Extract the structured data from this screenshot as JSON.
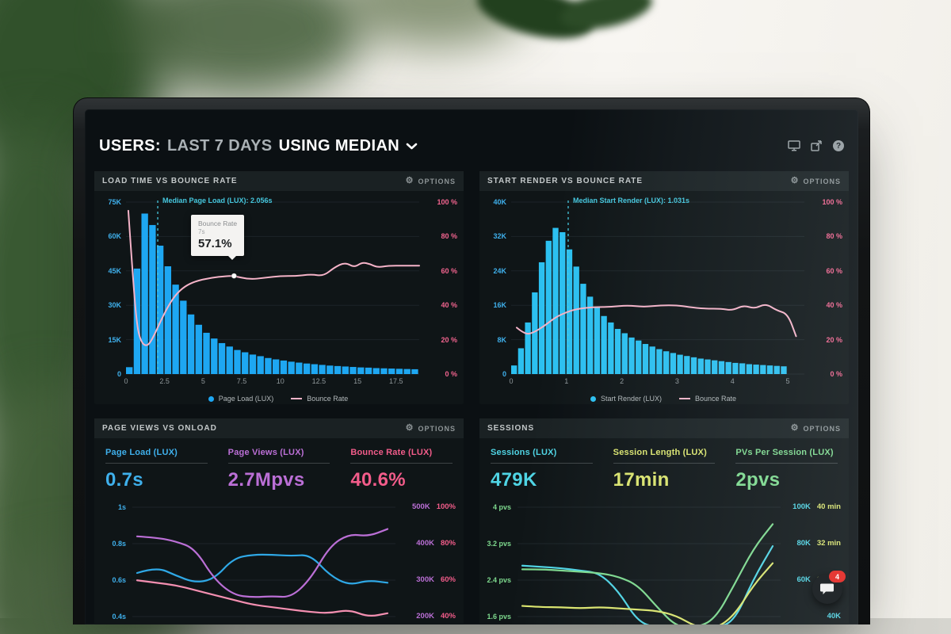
{
  "header": {
    "title_users": "USERS:",
    "title_range": "LAST 7 DAYS",
    "title_metric": "USING MEDIAN"
  },
  "icons": {
    "gear_glyph": "⚙",
    "help_glyph": "?"
  },
  "panels": {
    "load_time": {
      "title": "LOAD TIME VS BOUNCE RATE",
      "options": "OPTIONS",
      "tooltip": {
        "label": "Bounce Rate",
        "time": "7s",
        "value": "57.1%"
      }
    },
    "start_render": {
      "title": "START RENDER VS BOUNCE RATE",
      "options": "OPTIONS"
    },
    "page_views": {
      "title": "PAGE VIEWS VS ONLOAD",
      "options": "OPTIONS",
      "stats": [
        {
          "label": "Page Load (LUX)",
          "value": "0.7s",
          "color": "#3fb0ec"
        },
        {
          "label": "Page Views (LUX)",
          "value": "2.7Mpvs",
          "color": "#bb6fd6"
        },
        {
          "label": "Bounce Rate (LUX)",
          "value": "40.6%",
          "color": "#f25c8a"
        }
      ]
    },
    "sessions": {
      "title": "SESSIONS",
      "options": "OPTIONS",
      "stats": [
        {
          "label": "Sessions (LUX)",
          "value": "479K",
          "color": "#4fd4e4"
        },
        {
          "label": "Session Length (LUX)",
          "value": "17min",
          "color": "#dbe56e"
        },
        {
          "label": "PVs Per Session (LUX)",
          "value": "2pvs",
          "color": "#7ed98e"
        }
      ]
    }
  },
  "chat_badge": "4",
  "chart_data": [
    {
      "id": "load_time",
      "type": "histogram+line",
      "title": "LOAD TIME VS BOUNCE RATE",
      "x_unit": "seconds",
      "xlim": [
        0,
        19
      ],
      "x_ticks": [
        {
          "v": 0,
          "label": "0"
        },
        {
          "v": 2.5,
          "label": "2.5"
        },
        {
          "v": 5,
          "label": "5"
        },
        {
          "v": 7.5,
          "label": "7.5"
        },
        {
          "v": 10,
          "label": "10"
        },
        {
          "v": 12.5,
          "label": "12.5"
        },
        {
          "v": 15,
          "label": "15"
        },
        {
          "v": 17.5,
          "label": "17.5"
        }
      ],
      "left_axis": {
        "ticks": [
          "75K",
          "60K",
          "45K",
          "30K",
          "15K",
          "0"
        ],
        "max_k": 75,
        "color": "#3fb0ec"
      },
      "right_axis": {
        "ticks": [
          "100 %",
          "80 %",
          "60 %",
          "40 %",
          "20 %",
          "0 %"
        ],
        "max": 100,
        "color": "#f2648f"
      },
      "bars": {
        "name": "Page Load (LUX)",
        "color": "#1ea7f2",
        "bin_start": 0,
        "bin_width": 0.5,
        "values_k": [
          3,
          46,
          70,
          65,
          56,
          47,
          39,
          32,
          26,
          21.5,
          18,
          15.5,
          13.5,
          12,
          10.5,
          9.5,
          8.5,
          7.8,
          7,
          6.4,
          5.9,
          5.4,
          5,
          4.6,
          4.3,
          4,
          3.7,
          3.5,
          3.3,
          3.1,
          2.9,
          2.8,
          2.6,
          2.5,
          2.4,
          2.3,
          2.2,
          2.1
        ]
      },
      "line": {
        "name": "Bounce Rate",
        "color": "#f5b3c8",
        "points": [
          [
            0.15,
            95
          ],
          [
            0.4,
            62
          ],
          [
            0.7,
            28
          ],
          [
            1,
            18
          ],
          [
            1.4,
            16
          ],
          [
            1.8,
            22
          ],
          [
            2.2,
            30
          ],
          [
            2.7,
            39
          ],
          [
            3.2,
            46
          ],
          [
            3.8,
            51
          ],
          [
            4.5,
            54
          ],
          [
            5.5,
            56
          ],
          [
            6.5,
            57
          ],
          [
            7,
            57.1
          ],
          [
            8,
            55
          ],
          [
            9,
            56
          ],
          [
            10,
            57
          ],
          [
            11,
            57
          ],
          [
            12,
            58
          ],
          [
            12.8,
            57
          ],
          [
            13.5,
            62
          ],
          [
            14.2,
            65
          ],
          [
            14.8,
            62
          ],
          [
            15.3,
            65
          ],
          [
            15.8,
            64
          ],
          [
            16.3,
            62
          ],
          [
            17,
            63
          ],
          [
            18,
            63
          ],
          [
            19,
            63
          ]
        ]
      },
      "median": {
        "value": 2.056,
        "label": "Median Page Load (LUX): 2.056s",
        "color": "#45c6dd"
      },
      "marker": {
        "x": 7,
        "pct": 57.1
      }
    },
    {
      "id": "start_render",
      "type": "histogram+line",
      "title": "START RENDER VS BOUNCE RATE",
      "x_unit": "seconds",
      "xlim": [
        0,
        5.3
      ],
      "x_ticks": [
        {
          "v": 0,
          "label": "0"
        },
        {
          "v": 1,
          "label": "1"
        },
        {
          "v": 2,
          "label": "2"
        },
        {
          "v": 3,
          "label": "3"
        },
        {
          "v": 4,
          "label": "4"
        },
        {
          "v": 5,
          "label": "5"
        }
      ],
      "left_axis": {
        "ticks": [
          "40K",
          "32K",
          "24K",
          "16K",
          "8K",
          "0"
        ],
        "max_k": 40,
        "color": "#3fb0ec"
      },
      "right_axis": {
        "ticks": [
          "100 %",
          "80 %",
          "60 %",
          "40 %",
          "20 %",
          "0 %"
        ],
        "max": 100,
        "color": "#f2648f"
      },
      "bars": {
        "name": "Start Render (LUX)",
        "color": "#2cc0f0",
        "bin_start": 0,
        "bin_width": 0.125,
        "values_k": [
          2,
          6,
          12,
          19,
          26,
          31,
          34,
          33,
          29,
          25,
          21,
          18,
          15.5,
          13.5,
          12,
          10.5,
          9.5,
          8.5,
          7.8,
          7,
          6.4,
          5.8,
          5.3,
          4.9,
          4.5,
          4.2,
          3.9,
          3.6,
          3.4,
          3.2,
          3,
          2.8,
          2.6,
          2.5,
          2.3,
          2.2,
          2.1,
          2,
          1.9,
          1.8
        ]
      },
      "line": {
        "name": "Bounce Rate",
        "color": "#f5b3c8",
        "points": [
          [
            0.1,
            27
          ],
          [
            0.25,
            23
          ],
          [
            0.4,
            24
          ],
          [
            0.6,
            28
          ],
          [
            0.8,
            33
          ],
          [
            1,
            36
          ],
          [
            1.2,
            38
          ],
          [
            1.5,
            39
          ],
          [
            1.8,
            39
          ],
          [
            2.1,
            40
          ],
          [
            2.4,
            39
          ],
          [
            2.7,
            40
          ],
          [
            3,
            40
          ],
          [
            3.2,
            39
          ],
          [
            3.5,
            38
          ],
          [
            3.8,
            38
          ],
          [
            4,
            37
          ],
          [
            4.2,
            40
          ],
          [
            4.4,
            38
          ],
          [
            4.6,
            41
          ],
          [
            4.8,
            37
          ],
          [
            5,
            35
          ],
          [
            5.15,
            22
          ]
        ]
      },
      "median": {
        "value": 1.031,
        "label": "Median Start Render (LUX): 1.031s",
        "color": "#45c6dd"
      }
    },
    {
      "id": "page_views",
      "type": "multi-line",
      "title": "PAGE VIEWS VS ONLOAD",
      "left_axis": {
        "ticks": [
          "1s",
          "0.8s",
          "0.6s",
          "0.4s"
        ],
        "color": "#3fb0ec"
      },
      "right_axis": {
        "rows": [
          [
            "500K",
            "100%"
          ],
          [
            "400K",
            "80%"
          ],
          [
            "300K",
            "60%"
          ],
          [
            "200K",
            "40%"
          ]
        ],
        "colors": [
          "#bb6fd6",
          "#f25c8a"
        ]
      },
      "series": [
        {
          "name": "Page Load (LUX)",
          "color": "#2fa8e6",
          "y": [
            0.5,
            0.55,
            0.48,
            0.42,
            0.45,
            0.62,
            0.65,
            0.65,
            0.64,
            0.65,
            0.48,
            0.4,
            0.44,
            0.42
          ]
        },
        {
          "name": "Page Views (LUX)",
          "color": "#bb6fd6",
          "y": [
            0.8,
            0.79,
            0.76,
            0.7,
            0.45,
            0.32,
            0.3,
            0.31,
            0.3,
            0.45,
            0.72,
            0.82,
            0.8,
            0.86
          ]
        },
        {
          "name": "Bounce Rate (LUX)",
          "color": "#f48fb1",
          "y": [
            0.44,
            0.42,
            0.4,
            0.36,
            0.32,
            0.28,
            0.24,
            0.22,
            0.2,
            0.18,
            0.17,
            0.2,
            0.14,
            0.17
          ]
        }
      ]
    },
    {
      "id": "sessions",
      "type": "multi-line",
      "title": "SESSIONS",
      "left_axis": {
        "ticks": [
          "4 pvs",
          "3.2 pvs",
          "2.4 pvs",
          "1.6 pvs"
        ],
        "color": "#7ed98e"
      },
      "right_axis": {
        "rows": [
          [
            "100K",
            "40 min"
          ],
          [
            "80K",
            "32 min"
          ],
          [
            "60K",
            "24 min"
          ],
          [
            "40K",
            ""
          ]
        ],
        "colors": [
          "#4fd4e4",
          "#dbe56e"
        ]
      },
      "series": [
        {
          "name": "Sessions (LUX)",
          "color": "#4fd4e4",
          "y": [
            0.56,
            0.55,
            0.54,
            0.52,
            0.5,
            0.35,
            0.1,
            0.05,
            0.05,
            0.06,
            0.05,
            0.1,
            0.45,
            0.72
          ]
        },
        {
          "name": "PVs Per Session (LUX)",
          "color": "#7ed98e",
          "y": [
            0.53,
            0.53,
            0.52,
            0.51,
            0.5,
            0.47,
            0.4,
            0.22,
            0.06,
            0.05,
            0.12,
            0.4,
            0.7,
            0.9
          ]
        },
        {
          "name": "Session Length (LUX)",
          "color": "#dbe56e",
          "y": [
            0.23,
            0.22,
            0.22,
            0.21,
            0.22,
            0.21,
            0.2,
            0.19,
            0.15,
            0.06,
            0.04,
            0.15,
            0.4,
            0.58
          ]
        }
      ]
    }
  ]
}
